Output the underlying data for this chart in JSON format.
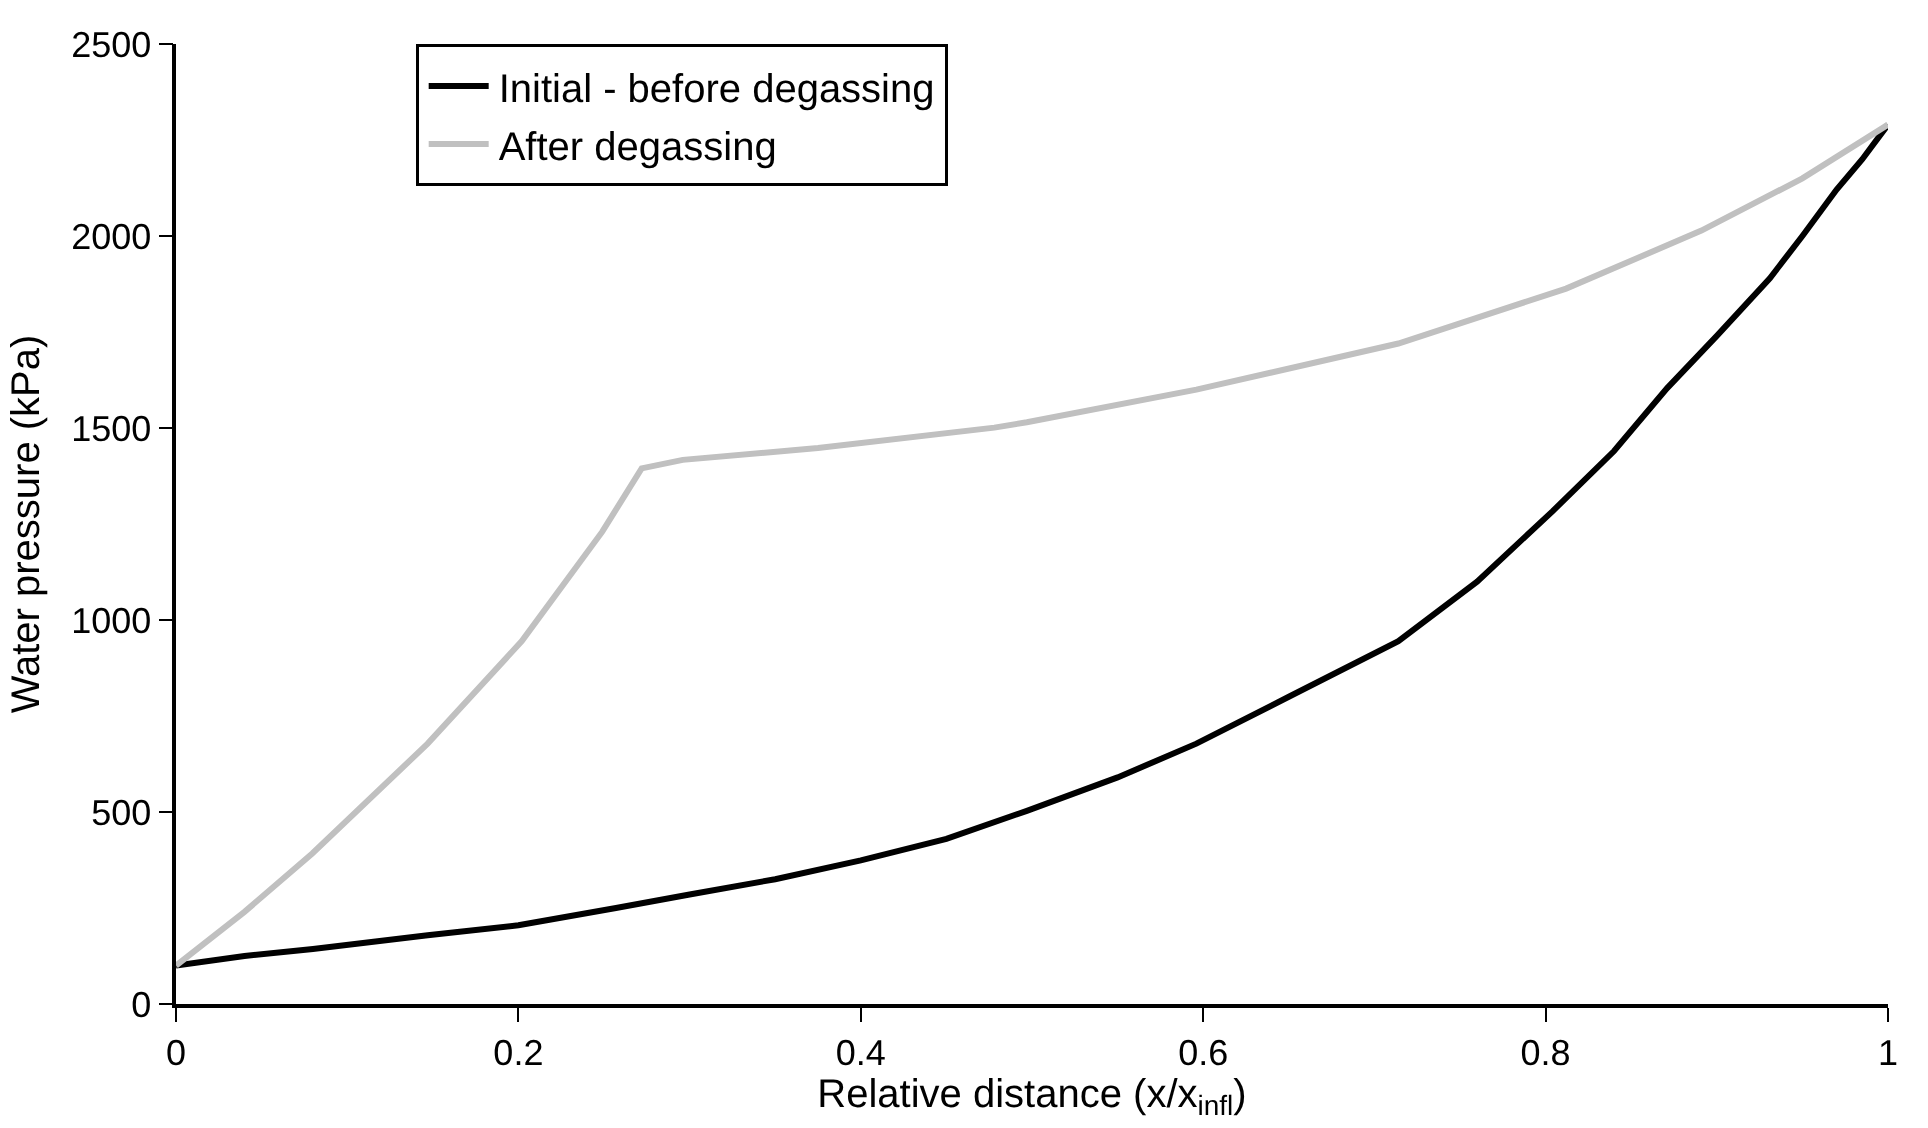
{
  "chart_data": {
    "type": "line",
    "xlabel": "Relative distance (x/x$_{infl}$)",
    "ylabel": "Water pressure (kPa)",
    "series": [
      {
        "name": "Initial - before degassing",
        "color": "#000000",
        "x": [
          0,
          0.04,
          0.08,
          0.147,
          0.2,
          0.257,
          0.3,
          0.35,
          0.4,
          0.45,
          0.497,
          0.55,
          0.596,
          0.65,
          0.714,
          0.76,
          0.804,
          0.84,
          0.871,
          0.9,
          0.931,
          0.95,
          0.97,
          0.985,
          1.0
        ],
        "values": [
          100,
          125,
          143,
          179,
          205,
          250,
          285,
          325,
          374,
          430,
          503,
          590,
          678,
          800,
          945,
          1100,
          1283,
          1440,
          1604,
          1740,
          1890,
          2000,
          2121,
          2200,
          2290
        ]
      },
      {
        "name": "After degassing",
        "color": "#c0c0c0",
        "x": [
          0,
          0.04,
          0.0796,
          0.147,
          0.202,
          0.249,
          0.272,
          0.296,
          0.375,
          0.478,
          0.497,
          0.596,
          0.714,
          0.812,
          0.891,
          0.95,
          1.0
        ],
        "values": [
          100,
          240,
          392,
          678,
          945,
          1230,
          1395,
          1417,
          1448,
          1501,
          1515,
          1600,
          1720,
          1863,
          2014,
          2150,
          2290
        ]
      }
    ],
    "xlim": [
      0,
      1
    ],
    "xticks": [
      0,
      0.2,
      0.4,
      0.6,
      0.8,
      1
    ],
    "ylim": [
      0,
      2500
    ],
    "yticks": [
      0,
      500,
      1000,
      1500,
      2000,
      2500
    ],
    "grid": false,
    "legend": "top left",
    "marker": "none",
    "line_style": "solid"
  }
}
